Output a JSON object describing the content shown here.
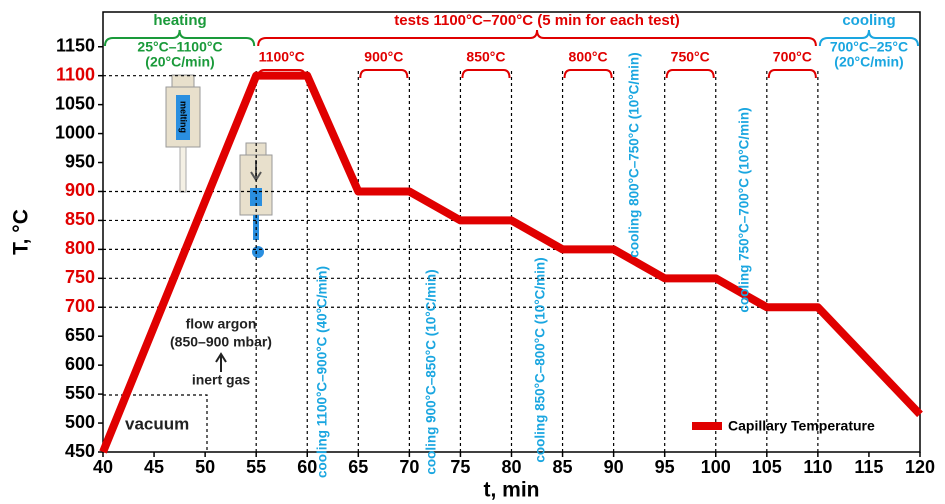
{
  "chart_data": {
    "type": "line",
    "x_label": "t, min",
    "y_label": "T, °C",
    "x": [
      40,
      55,
      60,
      65,
      70,
      75,
      80,
      85,
      90,
      95,
      100,
      105,
      110,
      120
    ],
    "series": [
      {
        "name": "Capillary Temperature",
        "color": "#e00000",
        "values": [
          450,
          1100,
          1100,
          900,
          900,
          850,
          850,
          800,
          800,
          750,
          750,
          700,
          700,
          515
        ]
      }
    ],
    "xlim": [
      40,
      120
    ],
    "ylim": [
      450,
      1210
    ],
    "xticks": [
      40,
      45,
      50,
      55,
      60,
      65,
      70,
      75,
      80,
      85,
      90,
      95,
      100,
      105,
      110,
      115,
      120
    ],
    "yticks": [
      450,
      500,
      550,
      600,
      650,
      700,
      750,
      800,
      850,
      900,
      950,
      1000,
      1050,
      1100,
      1150
    ],
    "ytick_colors": [
      "#000",
      "#000",
      "#000",
      "#000",
      "#000",
      "#e00000",
      "#e00000",
      "#e00000",
      "#e00000",
      "#e00000",
      "#000",
      "#000",
      "#000",
      "#e00000",
      "#000"
    ],
    "legend_position": "lower right",
    "annotations": {
      "heating": {
        "title": "heating",
        "range": "25°C–1100°C",
        "rate": "(20°C/min)",
        "color": "#1a9a3a"
      },
      "tests": {
        "title": "tests 1100°C–700°C (5 min for each test)",
        "color": "#e00000"
      },
      "cooling": {
        "title": "cooling",
        "range": "700°C–25°C",
        "rate": "(20°C/min)",
        "color": "#1aa6e0"
      },
      "holds": [
        "1100°C",
        "900°C",
        "850°C",
        "800°C",
        "750°C",
        "700°C"
      ],
      "cooling_steps": [
        "cooling 1100°C–900°C (40°C/min)",
        "cooling 900°C–850°C (10°C/min)",
        "cooling 850°C–800°C (10°C/min)",
        "cooling 800°C–750°C (10°C/min)",
        "cooling 750°C–700°C (10°C/min)"
      ],
      "gas": [
        "flow argon",
        "(850–900 mbar)",
        "inert gas"
      ],
      "vacuum": "vacuum",
      "melting": "melting"
    }
  }
}
